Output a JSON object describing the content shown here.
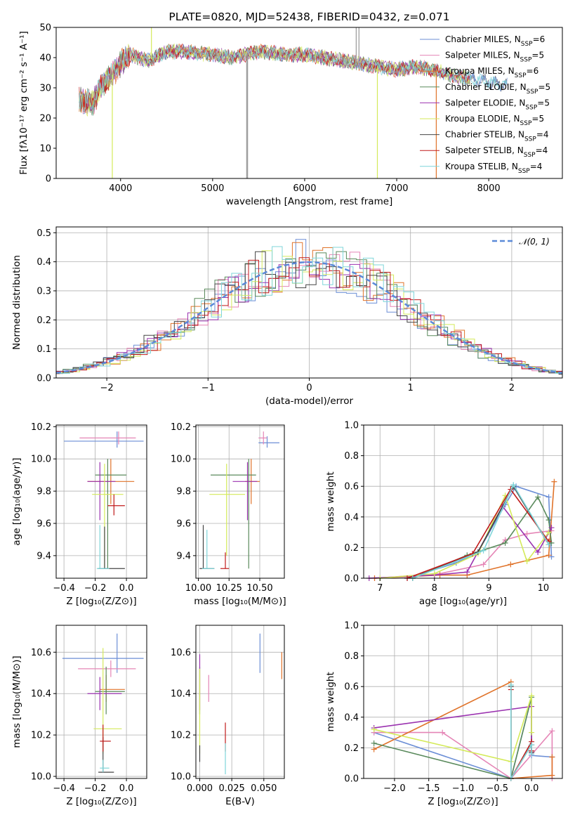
{
  "series_colors": [
    "#6b8ed6",
    "#e585b6",
    "#e0732a",
    "#5a8a5c",
    "#9b33b0",
    "#d4ea5a",
    "#444444",
    "#c01a1a",
    "#7fd6da"
  ],
  "chart_data": [
    {
      "id": "spectrum",
      "type": "line",
      "title": "PLATE=0820, MJD=52438, FIBERID=0432, z=0.071",
      "xlabel": "wavelength [Angstrom, rest frame]",
      "ylabel": "Flux [f_λ10^-17 erg cm^-2 s^-1 A^-1]",
      "xlim": [
        3300,
        8800
      ],
      "ylim": [
        0,
        50
      ],
      "xticks": [
        4000,
        5000,
        6000,
        7000,
        8000
      ],
      "yticks": [
        0,
        10,
        20,
        30,
        40,
        50
      ],
      "grid": false,
      "legend_position": "upper-right",
      "legend": [
        "Chabrier MILES, N_SSP=6",
        "Salpeter MILES, N_SSP=5",
        "Kroupa MILES, N_SSP=6",
        "Chabrier ELODIE, N_SSP=5",
        "Salpeter ELODIE, N_SSP=5",
        "Kroupa ELODIE, N_SSP=5",
        "Chabrier STELIB, N_SSP=4",
        "Salpeter STELIB, N_SSP=4",
        "Kroupa STELIB, N_SSP=4"
      ],
      "continuum": {
        "x": [
          3550,
          3700,
          3800,
          3900,
          4000,
          4100,
          4300,
          4500,
          4700,
          5000,
          5200,
          5500,
          5800,
          6000,
          6200,
          6400,
          6600,
          6800,
          7000,
          7200,
          7400,
          7600,
          7800,
          8000,
          8200
        ],
        "y": [
          26,
          25,
          31,
          34,
          38,
          41,
          39,
          42,
          42,
          41,
          40,
          42,
          41,
          41,
          40,
          39,
          38,
          37,
          36,
          37,
          36,
          34,
          33,
          32,
          31
        ]
      },
      "spikes": [
        {
          "x": 3910,
          "y": 0
        },
        {
          "x": 4335,
          "y": 50
        },
        {
          "x": 5370,
          "y": 0
        },
        {
          "x": 5380,
          "y": 0
        },
        {
          "x": 6560,
          "y": 50
        },
        {
          "x": 6590,
          "y": 50
        },
        {
          "x": 6790,
          "y": 0
        },
        {
          "x": 7430,
          "y": 0
        }
      ]
    },
    {
      "id": "residuals",
      "type": "step",
      "xlabel": "(data-model)/error",
      "ylabel": "Normed distribution",
      "xlim": [
        -2.5,
        2.5
      ],
      "ylim": [
        0,
        0.52
      ],
      "xticks": [
        -2,
        -1,
        0,
        1,
        2
      ],
      "yticks": [
        0.0,
        0.1,
        0.2,
        0.3,
        0.4,
        0.5
      ],
      "grid": true,
      "legend_position": "upper-right",
      "gaussian_label": "N(0,1)"
    },
    {
      "id": "age_vs_Z",
      "type": "errorbar",
      "xlabel": "Z [log10(Z/Z_sun)]",
      "ylabel": "age [log10(age/yr)]",
      "xlim": [
        -0.45,
        0.13
      ],
      "ylim": [
        9.26,
        10.21
      ],
      "xticks": [
        -0.4,
        -0.2,
        0.0
      ],
      "yticks": [
        9.4,
        9.6,
        9.8,
        10.0,
        10.2
      ],
      "grid": true,
      "points": [
        {
          "x": -0.06,
          "y": 10.11,
          "xe": [
            -0.4,
            0.11
          ],
          "ye": [
            10.07,
            10.17
          ]
        },
        {
          "x": -0.05,
          "y": 10.13,
          "xe": [
            -0.3,
            0.06
          ],
          "ye": [
            10.09,
            10.17
          ]
        },
        {
          "x": -0.1,
          "y": 9.86,
          "xe": [
            -0.25,
            0.05
          ],
          "ye": [
            9.72,
            10.0
          ]
        },
        {
          "x": -0.12,
          "y": 9.9,
          "xe": [
            -0.2,
            0.0
          ],
          "ye": [
            9.32,
            10.0
          ]
        },
        {
          "x": -0.17,
          "y": 9.86,
          "xe": [
            -0.25,
            -0.07
          ],
          "ye": [
            9.62,
            9.98
          ]
        },
        {
          "x": -0.14,
          "y": 9.78,
          "xe": [
            -0.22,
            -0.02
          ],
          "ye": [
            9.32,
            9.97
          ]
        },
        {
          "x": -0.14,
          "y": 9.32,
          "xe": [
            -0.18,
            -0.01
          ],
          "ye": [
            9.32,
            9.58
          ]
        },
        {
          "x": -0.08,
          "y": 9.71,
          "xe": [
            -0.12,
            -0.01
          ],
          "ye": [
            9.65,
            9.78
          ]
        },
        {
          "x": -0.17,
          "y": 9.32,
          "xe": [
            -0.19,
            -0.11
          ],
          "ye": [
            9.32,
            9.59
          ]
        }
      ]
    },
    {
      "id": "age_vs_mass",
      "type": "errorbar",
      "xlabel": "mass [log10(M/M_sun)]",
      "ylabel": "",
      "xlim": [
        9.98,
        10.7
      ],
      "ylim": [
        9.26,
        10.21
      ],
      "xticks": [
        10.0,
        10.25,
        10.5
      ],
      "yticks": [
        9.4,
        9.6,
        9.8,
        10.0,
        10.2
      ],
      "grid": true,
      "points": [
        {
          "x": 10.56,
          "y": 10.1,
          "xe": [
            10.49,
            10.66
          ],
          "ye": [
            10.07,
            10.14
          ]
        },
        {
          "x": 10.53,
          "y": 10.13,
          "xe": [
            10.49,
            10.56
          ],
          "ye": [
            10.09,
            10.17
          ]
        },
        {
          "x": 10.43,
          "y": 9.86,
          "xe": [
            10.38,
            10.5
          ],
          "ye": [
            9.72,
            10.0
          ]
        },
        {
          "x": 10.41,
          "y": 9.9,
          "xe": [
            10.1,
            10.47
          ],
          "ye": [
            9.32,
            10.0
          ]
        },
        {
          "x": 10.4,
          "y": 9.86,
          "xe": [
            10.28,
            10.48
          ],
          "ye": [
            9.62,
            9.98
          ]
        },
        {
          "x": 10.23,
          "y": 9.78,
          "xe": [
            10.09,
            10.38
          ],
          "ye": [
            9.4,
            9.97
          ]
        },
        {
          "x": 10.04,
          "y": 9.32,
          "xe": [
            10.01,
            10.13
          ],
          "ye": [
            9.32,
            9.59
          ]
        },
        {
          "x": 10.22,
          "y": 9.32,
          "xe": [
            10.18,
            10.25
          ],
          "ye": [
            9.32,
            9.42
          ]
        },
        {
          "x": 10.07,
          "y": 9.32,
          "xe": [
            10.03,
            10.13
          ],
          "ye": [
            9.32,
            9.56
          ]
        }
      ]
    },
    {
      "id": "mass_weight_vs_age",
      "type": "line",
      "xlabel": "age [log10(age/yr)]",
      "ylabel": "mass weight",
      "xlim": [
        6.7,
        10.35
      ],
      "ylim": [
        0,
        1.0
      ],
      "xticks": [
        7,
        8,
        9,
        10
      ],
      "yticks": [
        0.0,
        0.2,
        0.4,
        0.6,
        0.8,
        1.0
      ],
      "grid": true,
      "series": [
        {
          "x": [
            7.5,
            8.4,
            8.8,
            9.3,
            9.5,
            10.1,
            10.15
          ],
          "y": [
            0.0,
            0.1,
            0.17,
            0.48,
            0.6,
            0.53,
            0.14
          ]
        },
        {
          "x": [
            6.9,
            8.1,
            8.9,
            9.3,
            9.7,
            10.15
          ],
          "y": [
            0.0,
            0.03,
            0.09,
            0.25,
            0.29,
            0.31
          ]
        },
        {
          "x": [
            6.9,
            8.1,
            8.6,
            9.4,
            10.1,
            10.2
          ],
          "y": [
            0.0,
            0.02,
            0.02,
            0.09,
            0.15,
            0.63
          ]
        },
        {
          "x": [
            7.6,
            8.6,
            9.3,
            9.9,
            10.1,
            10.15
          ],
          "y": [
            0.0,
            0.15,
            0.23,
            0.53,
            0.38,
            0.23
          ]
        },
        {
          "x": [
            6.8,
            8.0,
            8.6,
            9.25,
            9.9,
            10.15
          ],
          "y": [
            0.0,
            0.02,
            0.04,
            0.47,
            0.17,
            0.33
          ]
        },
        {
          "x": [
            7.0,
            8.0,
            8.8,
            9.3,
            9.7,
            10.1
          ],
          "y": [
            0.0,
            0.03,
            0.16,
            0.54,
            0.11,
            0.3
          ]
        },
        {
          "x": [
            7.6,
            8.8,
            9.45,
            10.1
          ],
          "y": [
            0.0,
            0.17,
            0.6,
            0.22
          ]
        },
        {
          "x": [
            7.5,
            8.7,
            9.4,
            10.1
          ],
          "y": [
            0.0,
            0.16,
            0.58,
            0.24
          ]
        },
        {
          "x": [
            7.6,
            8.9,
            9.45,
            10.1
          ],
          "y": [
            0.0,
            0.18,
            0.61,
            0.22
          ]
        }
      ]
    },
    {
      "id": "mass_vs_Z",
      "type": "errorbar",
      "xlabel": "Z [log10(Z/Z_sun)]",
      "ylabel": "mass [log10(M/M_sun)]",
      "xlim": [
        -0.45,
        0.13
      ],
      "ylim": [
        9.99,
        10.73
      ],
      "xticks": [
        -0.4,
        -0.2,
        0.0
      ],
      "yticks": [
        10.0,
        10.2,
        10.4,
        10.6
      ],
      "grid": true,
      "points": [
        {
          "x": -0.06,
          "y": 10.57,
          "xe": [
            -0.41,
            0.11
          ],
          "ye": [
            10.5,
            10.69
          ]
        },
        {
          "x": -0.1,
          "y": 10.52,
          "xe": [
            -0.31,
            0.06
          ],
          "ye": [
            10.48,
            10.56
          ]
        },
        {
          "x": -0.13,
          "y": 10.42,
          "xe": [
            -0.17,
            -0.01
          ],
          "ye": [
            10.36,
            10.49
          ]
        },
        {
          "x": -0.13,
          "y": 10.41,
          "xe": [
            -0.2,
            -0.01
          ],
          "ye": [
            10.3,
            10.53
          ]
        },
        {
          "x": -0.17,
          "y": 10.4,
          "xe": [
            -0.25,
            -0.03
          ],
          "ye": [
            10.32,
            10.48
          ]
        },
        {
          "x": -0.15,
          "y": 10.23,
          "xe": [
            -0.21,
            -0.03
          ],
          "ye": [
            10.11,
            10.62
          ]
        },
        {
          "x": -0.15,
          "y": 10.02,
          "xe": [
            -0.18,
            -0.08
          ],
          "ye": [
            10.02,
            10.19
          ]
        },
        {
          "x": -0.15,
          "y": 10.17,
          "xe": [
            -0.17,
            -0.1
          ],
          "ye": [
            10.12,
            10.25
          ]
        },
        {
          "x": -0.15,
          "y": 10.04,
          "xe": [
            -0.17,
            -0.11
          ],
          "ye": [
            10.02,
            10.08
          ]
        }
      ]
    },
    {
      "id": "mass_vs_EBV",
      "type": "errorbar",
      "xlabel": "E(B-V)",
      "ylabel": "",
      "xlim": [
        -0.003,
        0.066
      ],
      "ylim": [
        9.99,
        10.73
      ],
      "xticks": [
        0.0,
        0.025,
        0.05
      ],
      "yticks": [
        10.0,
        10.2,
        10.4,
        10.6
      ],
      "grid": true,
      "points": [
        {
          "x": 0.047,
          "y": 10.57,
          "ye": [
            10.5,
            10.69
          ]
        },
        {
          "x": 0.007,
          "y": 10.42,
          "ye": [
            10.36,
            10.49
          ]
        },
        {
          "x": 0.064,
          "y": 10.52,
          "ye": [
            10.47,
            10.6
          ]
        },
        {
          "x": 0.0,
          "y": 10.41,
          "ye": [
            10.3,
            10.53
          ]
        },
        {
          "x": 0.0,
          "y": 10.4,
          "ye": [
            10.32,
            10.59
          ]
        },
        {
          "x": 0.0,
          "y": 10.23,
          "ye": [
            10.11,
            10.52
          ]
        },
        {
          "x": 0.0,
          "y": 10.1,
          "ye": [
            10.07,
            10.15
          ]
        },
        {
          "x": 0.02,
          "y": 10.17,
          "ye": [
            10.12,
            10.26
          ]
        },
        {
          "x": 0.02,
          "y": 10.05,
          "ye": [
            10.01,
            10.16
          ]
        }
      ]
    },
    {
      "id": "mass_weight_vs_Z",
      "type": "line",
      "xlabel": "Z [log10(Z/Z_sun)]",
      "ylabel": "mass weight",
      "xlim": [
        -2.45,
        0.45
      ],
      "ylim": [
        0,
        1.0
      ],
      "xticks": [
        -2.0,
        -1.5,
        -1.0,
        -0.5,
        0.0
      ],
      "yticks": [
        0.0,
        0.2,
        0.4,
        0.6,
        0.8,
        1.0
      ],
      "grid": true,
      "series": [
        {
          "x": [
            -2.3,
            -0.3,
            0.0,
            0.0,
            0.3
          ],
          "y": [
            0.3,
            0.0,
            0.53,
            0.15,
            0.14
          ]
        },
        {
          "x": [
            -2.3,
            -1.3,
            -0.3,
            0.3,
            0.3
          ],
          "y": [
            0.3,
            0.3,
            0.0,
            0.31,
            0.0
          ]
        },
        {
          "x": [
            -2.3,
            -0.3,
            -0.3,
            0.3,
            0.3
          ],
          "y": [
            0.19,
            0.63,
            0.0,
            0.02,
            0.14
          ]
        },
        {
          "x": [
            -2.3,
            -0.3,
            0.0,
            0.0
          ],
          "y": [
            0.23,
            0.0,
            0.53,
            0.22
          ]
        },
        {
          "x": [
            -2.3,
            0.0,
            0.0
          ],
          "y": [
            0.33,
            0.47,
            0.17
          ]
        },
        {
          "x": [
            -2.3,
            -0.3,
            0.0,
            0.0
          ],
          "y": [
            0.32,
            0.11,
            0.54,
            0.3
          ]
        },
        {
          "x": [
            -0.3,
            -0.3,
            0.0,
            0.0
          ],
          "y": [
            0.6,
            0.0,
            0.22,
            0.17
          ]
        },
        {
          "x": [
            -0.3,
            -0.3,
            0.0,
            0.0
          ],
          "y": [
            0.58,
            0.0,
            0.24,
            0.18
          ]
        },
        {
          "x": [
            -0.3,
            -0.3,
            0.0,
            0.0
          ],
          "y": [
            0.61,
            0.0,
            0.22,
            0.16
          ]
        }
      ]
    }
  ]
}
